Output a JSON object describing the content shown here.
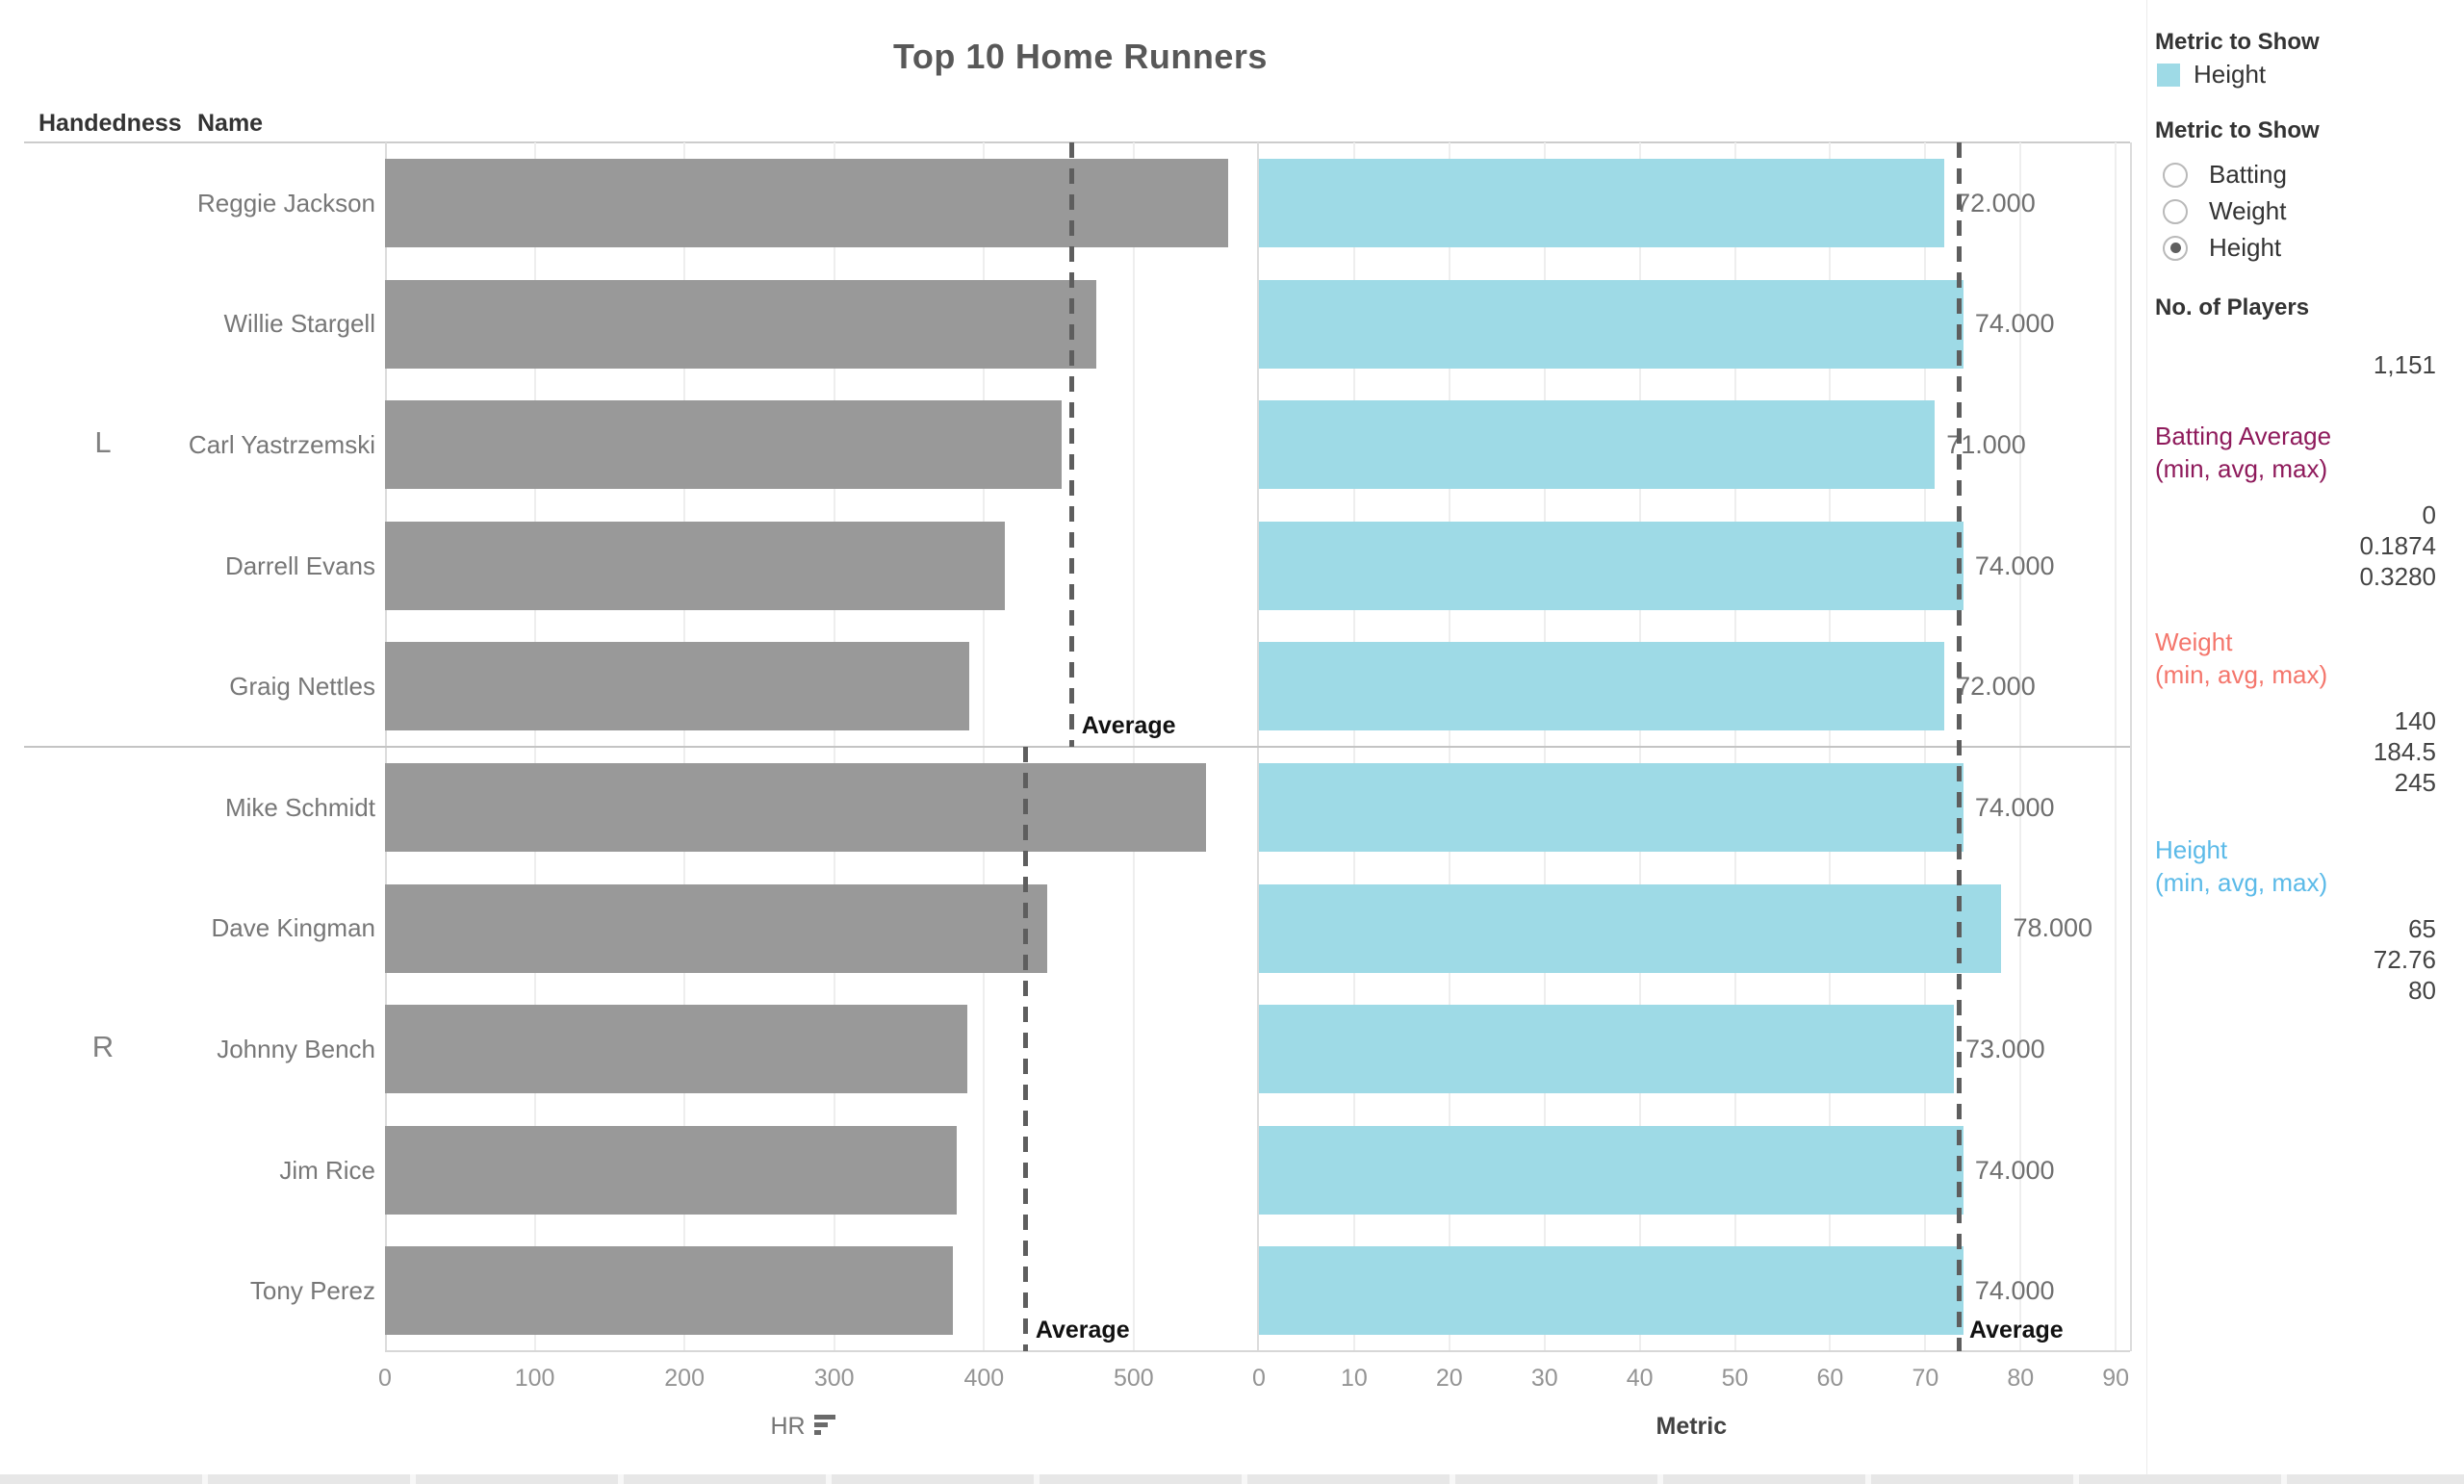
{
  "title": "Top 10 Home Runners",
  "columns": {
    "handedness": "Handedness",
    "name": "Name"
  },
  "colors": {
    "hr_bar": "#999999",
    "metric_bar": "#9EDAE6",
    "batting_accent": "#8E1A5B",
    "weight_accent": "#F4766C",
    "height_accent": "#5BBAE8"
  },
  "chart_data": {
    "type": "bar",
    "title": "Top 10 Home Runners",
    "orientation": "horizontal",
    "average_label": "Average",
    "hr_axis": {
      "label": "HR",
      "ticks": [
        0,
        100,
        200,
        300,
        400,
        500
      ],
      "max": 583
    },
    "metric_axis": {
      "label": "Metric",
      "ticks": [
        0,
        10,
        20,
        30,
        40,
        50,
        60,
        70,
        80,
        90
      ],
      "max": 91.5
    },
    "groups": [
      {
        "handedness": "L",
        "players": [
          {
            "name": "Reggie Jackson",
            "hr": 563,
            "metric": 72,
            "metric_label": "72.000"
          },
          {
            "name": "Willie Stargell",
            "hr": 475,
            "metric": 74,
            "metric_label": "74.000"
          },
          {
            "name": "Carl Yastrzemski",
            "hr": 452,
            "metric": 71,
            "metric_label": "71.000"
          },
          {
            "name": "Darrell Evans",
            "hr": 414,
            "metric": 74,
            "metric_label": "74.000"
          },
          {
            "name": "Graig Nettles",
            "hr": 390,
            "metric": 72,
            "metric_label": "72.000"
          }
        ]
      },
      {
        "handedness": "R",
        "players": [
          {
            "name": "Mike Schmidt",
            "hr": 548,
            "metric": 74,
            "metric_label": "74.000"
          },
          {
            "name": "Dave Kingman",
            "hr": 442,
            "metric": 78,
            "metric_label": "78.000"
          },
          {
            "name": "Johnny Bench",
            "hr": 389,
            "metric": 73,
            "metric_label": "73.000"
          },
          {
            "name": "Jim Rice",
            "hr": 382,
            "metric": 74,
            "metric_label": "74.000"
          },
          {
            "name": "Tony Perez",
            "hr": 379,
            "metric": 74,
            "metric_label": "74.000"
          }
        ]
      }
    ]
  },
  "sidebar": {
    "legend": {
      "title": "Metric to Show",
      "item": "Height"
    },
    "param": {
      "title": "Metric to Show",
      "options": [
        {
          "label": "Batting",
          "selected": false
        },
        {
          "label": "Weight",
          "selected": false
        },
        {
          "label": "Height",
          "selected": true
        }
      ]
    },
    "players": {
      "title": "No. of Players",
      "value": "1,151"
    },
    "stats": [
      {
        "title": "Batting Average",
        "subtitle": "(min, avg, max)",
        "color": "#8E1A5B",
        "values": [
          "0",
          "0.1874",
          "0.3280"
        ]
      },
      {
        "title": "Weight",
        "subtitle": "(min, avg, max)",
        "color": "#F4766C",
        "values": [
          "140",
          "184.5",
          "245"
        ]
      },
      {
        "title": "Height",
        "subtitle": "(min, avg, max)",
        "color": "#5BBAE8",
        "values": [
          "65",
          "72.76",
          "80"
        ]
      }
    ]
  }
}
